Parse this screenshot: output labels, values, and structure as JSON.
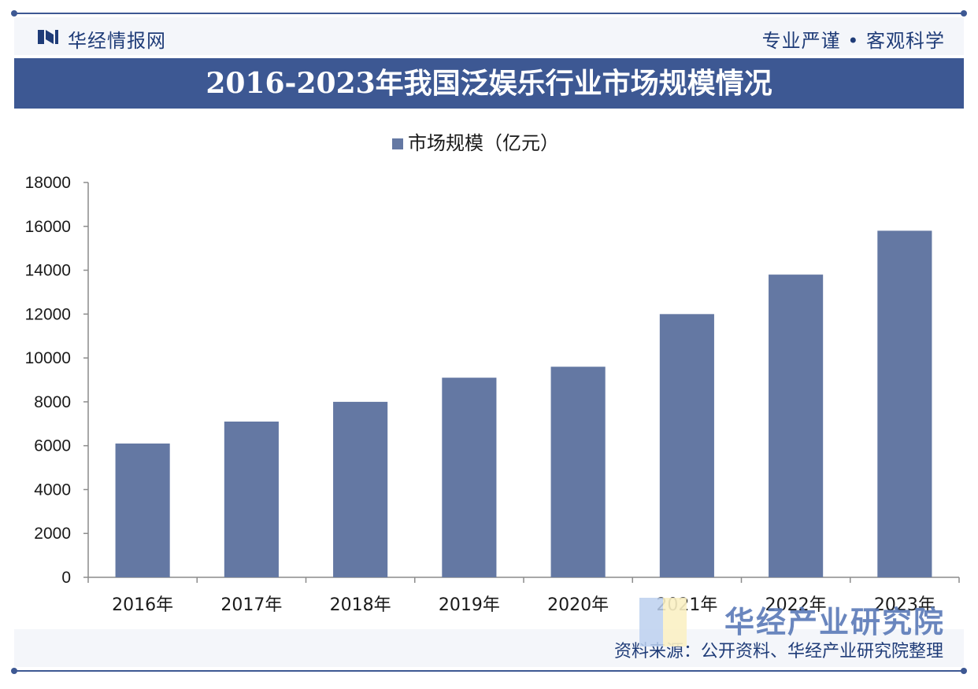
{
  "header": {
    "brand": "华经情报网",
    "slogan": "专业严谨 • 客观科学"
  },
  "title": "2016-2023年我国泛娱乐行业市场规模情况",
  "footer": {
    "source": "资料来源：公开资料、华经产业研究院整理",
    "brand_mark": "华经产业研究院"
  },
  "colors": {
    "bar": "#6478a3",
    "accent": "#3d5893"
  },
  "chart_data": {
    "type": "bar",
    "categories": [
      "2016年",
      "2017年",
      "2018年",
      "2019年",
      "2020年",
      "2021年",
      "2022年",
      "2023年"
    ],
    "series": [
      {
        "name": "市场规模（亿元）",
        "values": [
          6100,
          7100,
          8000,
          9100,
          9600,
          12000,
          13800,
          15800
        ]
      }
    ],
    "y_ticks": [
      0,
      2000,
      4000,
      6000,
      8000,
      10000,
      12000,
      14000,
      16000,
      18000
    ],
    "ylim": [
      0,
      18000
    ],
    "grid": false,
    "legend": "top-center"
  }
}
